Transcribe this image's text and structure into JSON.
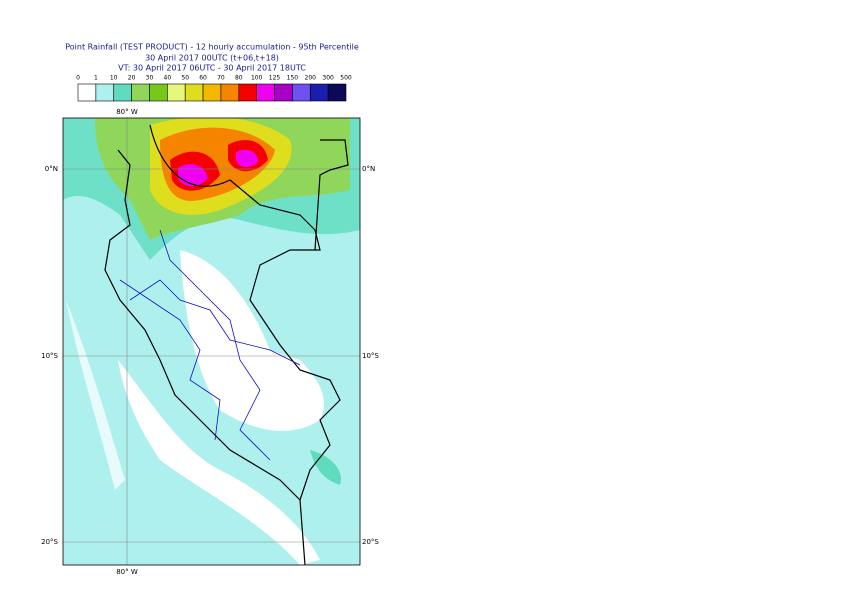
{
  "header": {
    "title": [
      "Point Rainfall (TEST PRODUCT) - 12 hourly accumulation - 95th Percentile",
      "30 April 2017 00UTC (t+06,t+18)",
      "VT: 30 April 2017 06UTC - 30 April 2017 18UTC"
    ]
  },
  "colorbar": {
    "labels": [
      "0",
      "1",
      "10",
      "20",
      "30",
      "40",
      "50",
      "60",
      "70",
      "80",
      "100",
      "125",
      "150",
      "200",
      "300",
      "500"
    ],
    "colors": [
      "#ffffff",
      "#aef0ee",
      "#5fdcbe",
      "#8fd65a",
      "#76c81a",
      "#e6f77a",
      "#dede1e",
      "#f5b800",
      "#f58400",
      "#f50000",
      "#f000f0",
      "#a800c8",
      "#7050f0",
      "#1c1cb0",
      "#0a0a58"
    ]
  },
  "map": {
    "lon_labels": [
      "80° W",
      "80° W"
    ],
    "lat_labels": [
      "0°N",
      "10°S",
      "20°S"
    ]
  }
}
